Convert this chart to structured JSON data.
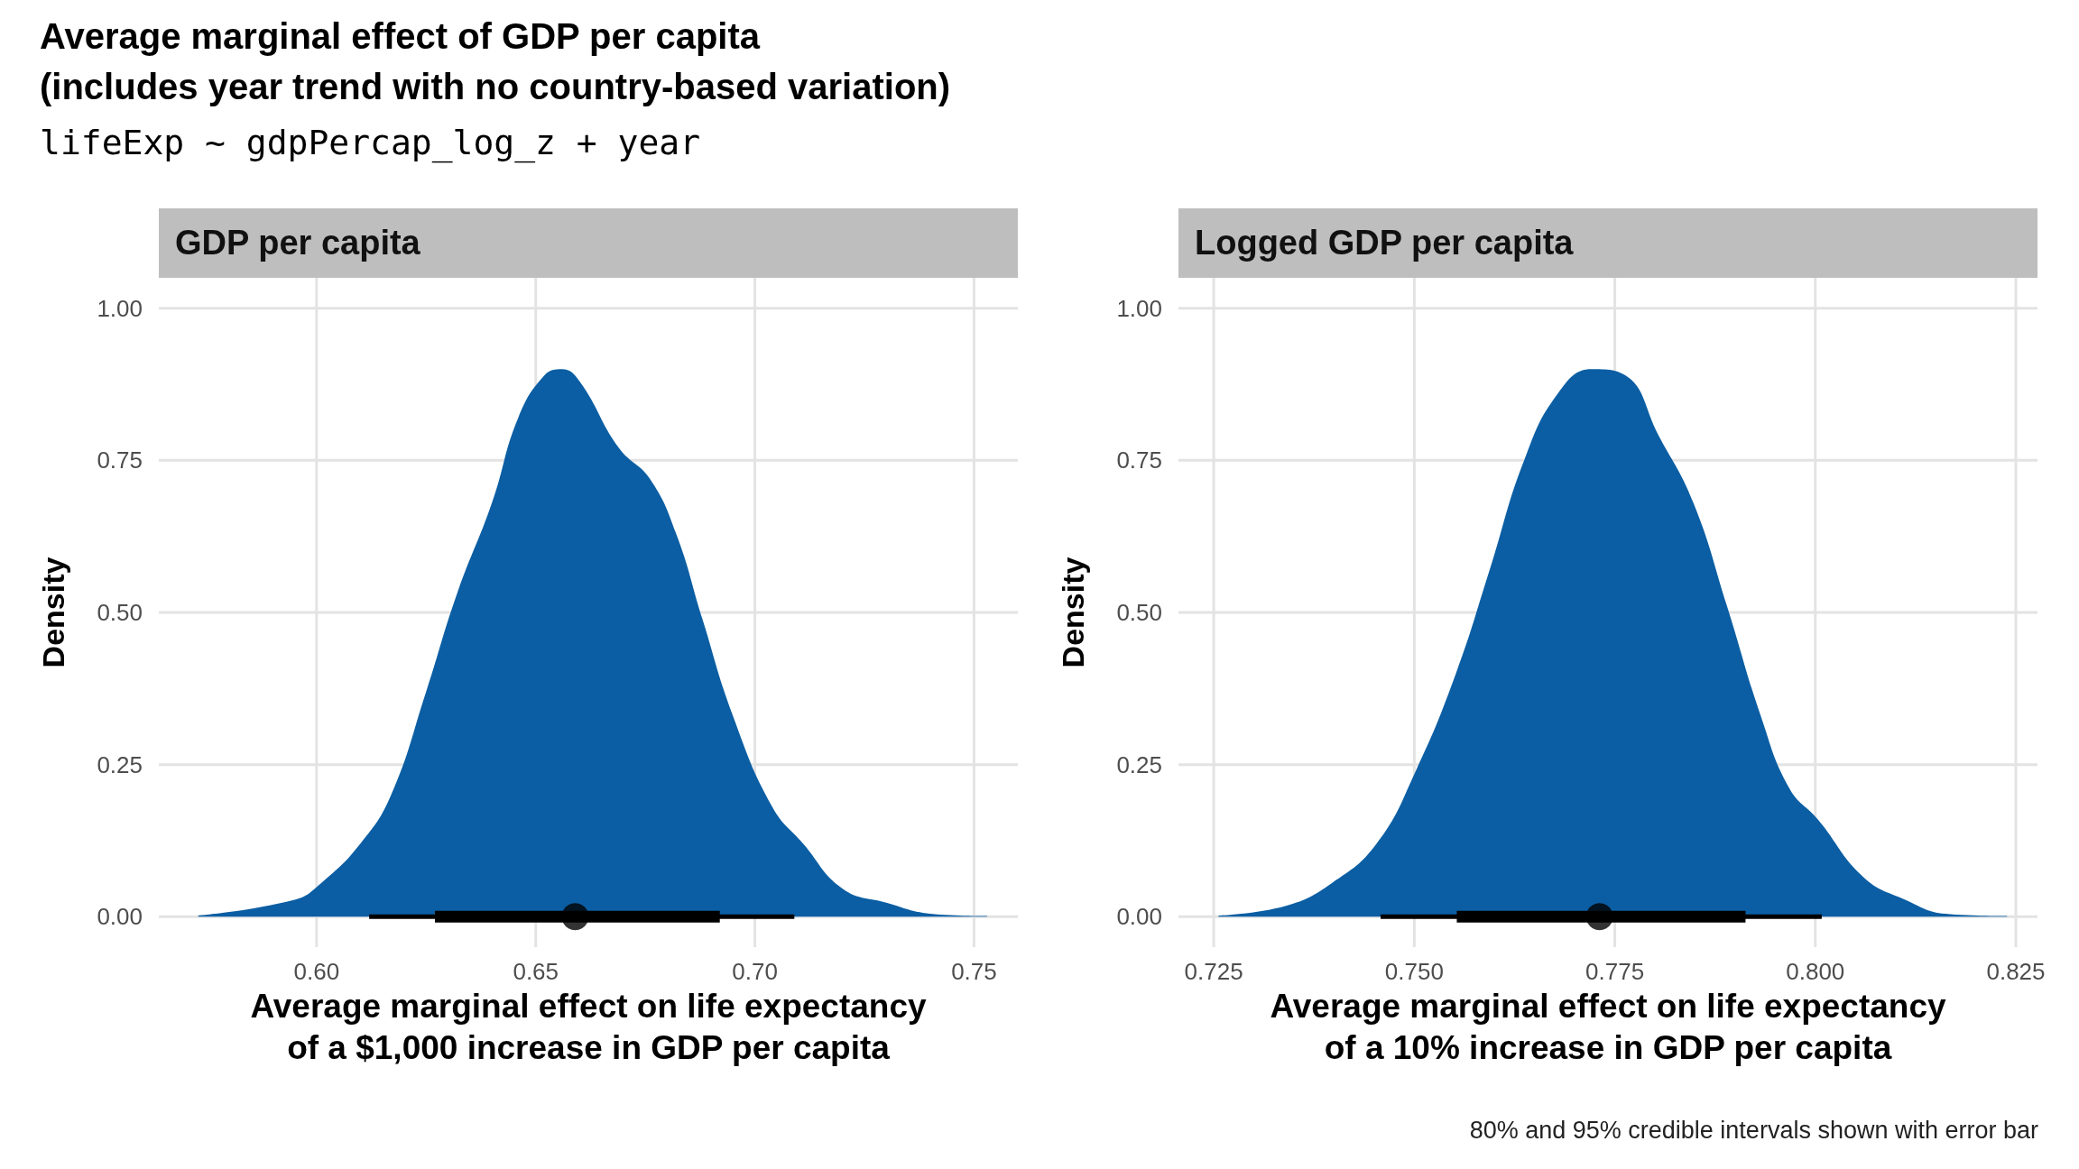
{
  "chart_data": [
    {
      "type": "area",
      "title": "GDP per capita",
      "xlabel": "Average marginal effect on life expectancy\nof a $1,000 increase in GDP per capita",
      "ylabel": "Density",
      "annotations": [
        "Average marginal effect of GDP per capita\n(includes year trend with no country-based variation)",
        "lifeExp ~ gdpPercap_log_z + year"
      ],
      "xlim": [
        0.564,
        0.76
      ],
      "xticks": [
        {
          "value": 0.6,
          "label": "0.60"
        },
        {
          "value": 0.65,
          "label": "0.65"
        },
        {
          "value": 0.7,
          "label": "0.70"
        },
        {
          "value": 0.75,
          "label": "0.75"
        }
      ],
      "ylim": [
        -0.05,
        1.05
      ],
      "yticks": [
        {
          "value": 0,
          "label": "0.00"
        },
        {
          "value": 0.25,
          "label": "0.25"
        },
        {
          "value": 0.5,
          "label": "0.50"
        },
        {
          "value": 0.75,
          "label": "0.75"
        },
        {
          "value": 1,
          "label": "1.00"
        }
      ],
      "grid": true,
      "series": [
        {
          "color": "#0b5ea3",
          "marker": "none",
          "x": [
            0.573,
            0.595,
            0.601,
            0.61,
            0.617,
            0.625,
            0.632,
            0.64,
            0.646,
            0.652,
            0.656,
            0.66,
            0.669,
            0.676,
            0.682,
            0.688,
            0.695,
            0.704,
            0.711,
            0.72,
            0.73,
            0.74,
            0.753
          ],
          "values": [
            0.002,
            0.028,
            0.055,
            0.12,
            0.2,
            0.37,
            0.53,
            0.68,
            0.82,
            0.89,
            0.9,
            0.88,
            0.77,
            0.72,
            0.63,
            0.49,
            0.33,
            0.18,
            0.12,
            0.046,
            0.023,
            0.005,
            0.001
          ]
        },
        {
          "type": "line",
          "color": "#000000",
          "marker": "none",
          "x": [
            0.612,
            0.709
          ],
          "values": [
            0,
            0
          ]
        },
        {
          "type": "line",
          "color": "#000000",
          "marker": "none",
          "x": [
            0.627,
            0.692
          ],
          "values": [
            0,
            0
          ]
        },
        {
          "type": "scatter",
          "color": "#000000",
          "marker": "circle",
          "x": [
            0.659
          ],
          "values": [
            0
          ]
        }
      ]
    },
    {
      "type": "area",
      "title": "Logged GDP per capita",
      "xlabel": "Average marginal effect on life expectancy\nof a 10% increase in GDP per capita",
      "ylabel": "Density",
      "annotations": [
        "80% and 95% credible intervals shown with error bar"
      ],
      "xlim": [
        0.7206,
        0.8277
      ],
      "xticks": [
        {
          "value": 0.725,
          "label": "0.725"
        },
        {
          "value": 0.75,
          "label": "0.750"
        },
        {
          "value": 0.775,
          "label": "0.775"
        },
        {
          "value": 0.8,
          "label": "0.800"
        },
        {
          "value": 0.825,
          "label": "0.825"
        }
      ],
      "ylim": [
        -0.05,
        1.05
      ],
      "yticks": [
        {
          "value": 0,
          "label": "0.00"
        },
        {
          "value": 0.25,
          "label": "0.25"
        },
        {
          "value": 0.5,
          "label": "0.50"
        },
        {
          "value": 0.75,
          "label": "0.75"
        },
        {
          "value": 1,
          "label": "1.00"
        }
      ],
      "grid": true,
      "series": [
        {
          "color": "#0b5ea3",
          "marker": "none",
          "x": [
            0.7256,
            0.734,
            0.7397,
            0.7453,
            0.7502,
            0.7552,
            0.7594,
            0.7637,
            0.7679,
            0.7721,
            0.7763,
            0.7805,
            0.7848,
            0.789,
            0.7932,
            0.7968,
            0.8003,
            0.806,
            0.8112,
            0.8162,
            0.8239
          ],
          "values": [
            0.002,
            0.018,
            0.055,
            0.12,
            0.24,
            0.4,
            0.57,
            0.75,
            0.86,
            0.9,
            0.89,
            0.79,
            0.68,
            0.51,
            0.33,
            0.21,
            0.16,
            0.065,
            0.028,
            0.005,
            0.001
          ]
        },
        {
          "type": "line",
          "color": "#000000",
          "marker": "none",
          "x": [
            0.7458,
            0.8008
          ],
          "values": [
            0,
            0
          ]
        },
        {
          "type": "line",
          "color": "#000000",
          "marker": "none",
          "x": [
            0.7553,
            0.7913
          ],
          "values": [
            0,
            0
          ]
        },
        {
          "type": "scatter",
          "color": "#000000",
          "marker": "circle",
          "x": [
            0.7731
          ],
          "values": [
            0
          ]
        }
      ]
    }
  ]
}
